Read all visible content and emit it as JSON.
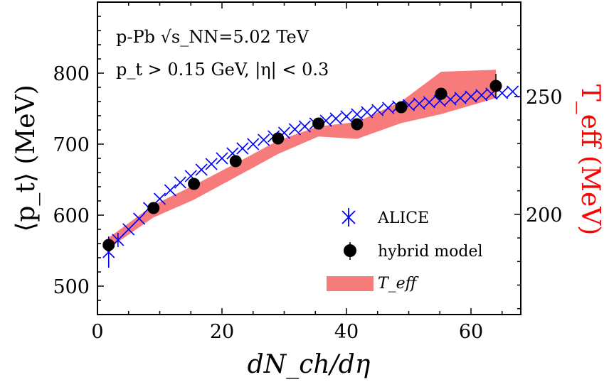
{
  "chart_data": {
    "type": "scatter",
    "xlabel": "dN_ch/dη",
    "ylabel": "⟨p_t⟩ (MeV)",
    "y2label": "T_eff (MeV)",
    "xlim": [
      0,
      68
    ],
    "ylim": [
      460,
      900
    ],
    "y2lim": [
      157.5,
      290
    ],
    "xticks": [
      "0",
      "20",
      "40",
      "60"
    ],
    "yticks": [
      "500",
      "600",
      "700",
      "800"
    ],
    "y2ticks": [
      "200",
      "250"
    ],
    "annotations": [
      "p-Pb √s_NN=5.02 TeV",
      "p_t > 0.15 GeV, |η| < 0.3"
    ],
    "legend_position": "lower-right",
    "series": [
      {
        "name": "ALICE",
        "marker": "x",
        "color": "#0000ff",
        "x": [
          1.8,
          3.3,
          5.0,
          6.7,
          8.3,
          10.0,
          11.7,
          13.3,
          15.0,
          16.7,
          18.3,
          20.0,
          21.7,
          23.3,
          25.0,
          26.7,
          28.3,
          30.0,
          31.7,
          33.3,
          35.0,
          36.7,
          38.3,
          40.0,
          41.7,
          43.3,
          45.0,
          46.7,
          48.3,
          50.0,
          51.7,
          53.3,
          55.0,
          56.7,
          58.3,
          60.0,
          61.7,
          63.3,
          65.0,
          66.7
        ],
        "y": [
          548,
          565,
          580,
          595,
          610,
          623,
          635,
          646,
          655,
          664,
          672,
          680,
          687,
          694,
          700,
          706,
          711,
          716,
          721,
          725,
          729,
          733,
          736,
          739,
          742,
          745,
          748,
          751,
          753,
          755,
          757,
          759,
          761,
          763,
          765,
          767,
          769,
          771,
          772,
          774
        ],
        "yerr": [
          22,
          10,
          0,
          0,
          0,
          0,
          0,
          0,
          0,
          0,
          0,
          0,
          0,
          0,
          0,
          0,
          0,
          0,
          0,
          0,
          0,
          0,
          0,
          0,
          0,
          0,
          0,
          0,
          0,
          0,
          0,
          0,
          0,
          0,
          0,
          0,
          0,
          0,
          0,
          0
        ]
      },
      {
        "name": "hybrid model",
        "marker": "o",
        "color": "#000000",
        "x": [
          1.8,
          9.0,
          15.5,
          22.2,
          29.0,
          35.5,
          41.7,
          48.8,
          55.2,
          64.0
        ],
        "y": [
          558,
          610,
          644,
          676,
          708,
          729,
          728,
          752,
          771,
          782
        ],
        "yerr": [
          0,
          0,
          0,
          0,
          0,
          0,
          0,
          0,
          0,
          17
        ]
      },
      {
        "name": "T_eff",
        "type": "band",
        "color": "#f77b7b",
        "axis": "right",
        "x": [
          1.8,
          9.0,
          15.5,
          22.2,
          29.0,
          35.5,
          41.7,
          48.8,
          55.2,
          64.0
        ],
        "y_low": [
          185.6,
          198.7,
          206.2,
          215.8,
          225.6,
          233.0,
          232.0,
          238.7,
          242.5,
          249.3
        ],
        "y_high": [
          190.1,
          204.0,
          212.3,
          221.6,
          231.3,
          237.3,
          239.2,
          247.9,
          260.5,
          261.3
        ]
      }
    ]
  }
}
